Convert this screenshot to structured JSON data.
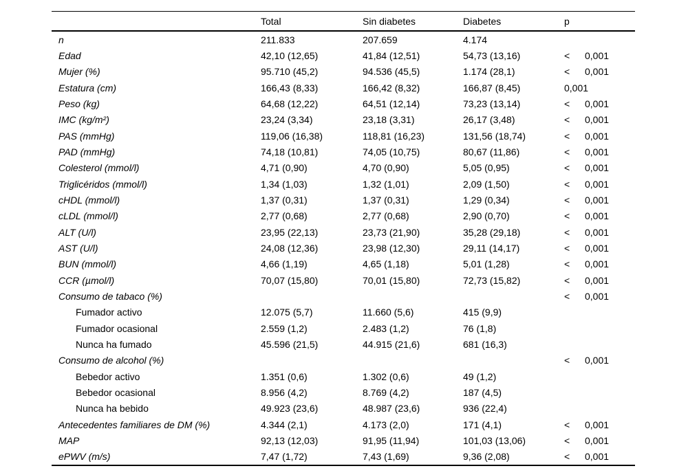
{
  "table": {
    "header": {
      "total": "Total",
      "sin_diabetes": "Sin diabetes",
      "diabetes": "Diabetes",
      "p": "p"
    },
    "rows": [
      {
        "label": "n",
        "italic": true,
        "indent": false,
        "total": "211.833",
        "sin_diabetes": "207.659",
        "diabetes": "4.174",
        "p_sign": "",
        "p": ""
      },
      {
        "label": "Edad",
        "italic": true,
        "indent": false,
        "total": "42,10 (12,65)",
        "sin_diabetes": "41,84 (12,51)",
        "diabetes": "54,73 (13,16)",
        "p_sign": "<",
        "p": "0,001"
      },
      {
        "label": "Mujer (%)",
        "italic": true,
        "indent": false,
        "total": "95.710 (45,2)",
        "sin_diabetes": "94.536 (45,5)",
        "diabetes": "1.174 (28,1)",
        "p_sign": "<",
        "p": "0,001"
      },
      {
        "label": "Estatura (cm)",
        "italic": true,
        "indent": false,
        "total": "166,43 (8,33)",
        "sin_diabetes": "166,42 (8,32)",
        "diabetes": "166,87 (8,45)",
        "p_sign": "",
        "p": "0,001"
      },
      {
        "label": "Peso (kg)",
        "italic": true,
        "indent": false,
        "total": "64,68 (12,22)",
        "sin_diabetes": "64,51 (12,14)",
        "diabetes": "73,23 (13,14)",
        "p_sign": "<",
        "p": "0,001"
      },
      {
        "label": "IMC (kg/m²)",
        "italic": true,
        "indent": false,
        "total": "23,24 (3,34)",
        "sin_diabetes": "23,18 (3,31)",
        "diabetes": "26,17 (3,48)",
        "p_sign": "<",
        "p": "0,001"
      },
      {
        "label": "PAS (mmHg)",
        "italic": true,
        "indent": false,
        "total": "119,06 (16,38)",
        "sin_diabetes": "118,81 (16,23)",
        "diabetes": "131,56 (18,74)",
        "p_sign": "<",
        "p": "0,001"
      },
      {
        "label": "PAD (mmHg)",
        "italic": true,
        "indent": false,
        "total": "74,18 (10,81)",
        "sin_diabetes": "74,05 (10,75)",
        "diabetes": "80,67 (11,86)",
        "p_sign": "<",
        "p": "0,001"
      },
      {
        "label": "Colesterol (mmol/l)",
        "italic": true,
        "indent": false,
        "total": "4,71 (0,90)",
        "sin_diabetes": "4,70 (0,90)",
        "diabetes": "5,05 (0,95)",
        "p_sign": "<",
        "p": "0,001"
      },
      {
        "label": "Triglicéridos (mmol/l)",
        "italic": true,
        "indent": false,
        "total": "1,34 (1,03)",
        "sin_diabetes": "1,32 (1,01)",
        "diabetes": "2,09 (1,50)",
        "p_sign": "<",
        "p": "0,001"
      },
      {
        "label": "cHDL (mmol/l)",
        "italic": true,
        "indent": false,
        "total": "1,37 (0,31)",
        "sin_diabetes": "1,37 (0,31)",
        "diabetes": "1,29 (0,34)",
        "p_sign": "<",
        "p": "0,001"
      },
      {
        "label": "cLDL (mmol/l)",
        "italic": true,
        "indent": false,
        "total": "2,77 (0,68)",
        "sin_diabetes": "2,77 (0,68)",
        "diabetes": "2,90 (0,70)",
        "p_sign": "<",
        "p": "0,001"
      },
      {
        "label": "ALT (U/l)",
        "italic": true,
        "indent": false,
        "total": "23,95 (22,13)",
        "sin_diabetes": "23,73 (21,90)",
        "diabetes": "35,28 (29,18)",
        "p_sign": "<",
        "p": "0,001"
      },
      {
        "label": "AST (U/l)",
        "italic": true,
        "indent": false,
        "total": "24,08 (12,36)",
        "sin_diabetes": "23,98 (12,30)",
        "diabetes": "29,11 (14,17)",
        "p_sign": "<",
        "p": "0,001"
      },
      {
        "label": "BUN (mmol/l)",
        "italic": true,
        "indent": false,
        "total": "4,66 (1,19)",
        "sin_diabetes": "4,65 (1,18)",
        "diabetes": "5,01 (1,28)",
        "p_sign": "<",
        "p": "0,001"
      },
      {
        "label": "CCR (µmol/l)",
        "italic": true,
        "indent": false,
        "total": "70,07 (15,80)",
        "sin_diabetes": "70,01 (15,80)",
        "diabetes": "72,73 (15,82)",
        "p_sign": "<",
        "p": "0,001"
      },
      {
        "label": "Consumo de tabaco (%)",
        "italic": true,
        "indent": false,
        "total": "",
        "sin_diabetes": "",
        "diabetes": "",
        "p_sign": "<",
        "p": "0,001"
      },
      {
        "label": "Fumador activo",
        "italic": false,
        "indent": true,
        "total": "12.075 (5,7)",
        "sin_diabetes": "11.660 (5,6)",
        "diabetes": "415 (9,9)",
        "p_sign": "",
        "p": ""
      },
      {
        "label": "Fumador ocasional",
        "italic": false,
        "indent": true,
        "total": "2.559 (1,2)",
        "sin_diabetes": "2.483 (1,2)",
        "diabetes": "76 (1,8)",
        "p_sign": "",
        "p": ""
      },
      {
        "label": "Nunca ha fumado",
        "italic": false,
        "indent": true,
        "total": "45.596 (21,5)",
        "sin_diabetes": "44.915 (21,6)",
        "diabetes": "681 (16,3)",
        "p_sign": "",
        "p": ""
      },
      {
        "label": "Consumo de alcohol (%)",
        "italic": true,
        "indent": false,
        "total": "",
        "sin_diabetes": "",
        "diabetes": "",
        "p_sign": "<",
        "p": "0,001"
      },
      {
        "label": "Bebedor activo",
        "italic": false,
        "indent": true,
        "total": "1.351 (0,6)",
        "sin_diabetes": "1.302 (0,6)",
        "diabetes": "49 (1,2)",
        "p_sign": "",
        "p": ""
      },
      {
        "label": "Bebedor ocasional",
        "italic": false,
        "indent": true,
        "total": "8.956 (4,2)",
        "sin_diabetes": "8.769 (4,2)",
        "diabetes": "187 (4,5)",
        "p_sign": "",
        "p": ""
      },
      {
        "label": "Nunca ha bebido",
        "italic": false,
        "indent": true,
        "total": "49.923 (23,6)",
        "sin_diabetes": "48.987 (23,6)",
        "diabetes": "936 (22,4)",
        "p_sign": "",
        "p": ""
      },
      {
        "label": "Antecedentes familiares de DM (%)",
        "italic": true,
        "indent": false,
        "total": "4.344 (2,1)",
        "sin_diabetes": "4.173 (2,0)",
        "diabetes": "171 (4,1)",
        "p_sign": "<",
        "p": "0,001"
      },
      {
        "label": "MAP",
        "italic": true,
        "indent": false,
        "total": "92,13 (12,03)",
        "sin_diabetes": "91,95 (11,94)",
        "diabetes": "101,03 (13,06)",
        "p_sign": "<",
        "p": "0,001"
      },
      {
        "label": "ePWV (m/s)",
        "italic": true,
        "indent": false,
        "total": "7,47 (1,72)",
        "sin_diabetes": "7,43 (1,69)",
        "diabetes": "9,36 (2,08)",
        "p_sign": "<",
        "p": "0,001"
      }
    ]
  }
}
